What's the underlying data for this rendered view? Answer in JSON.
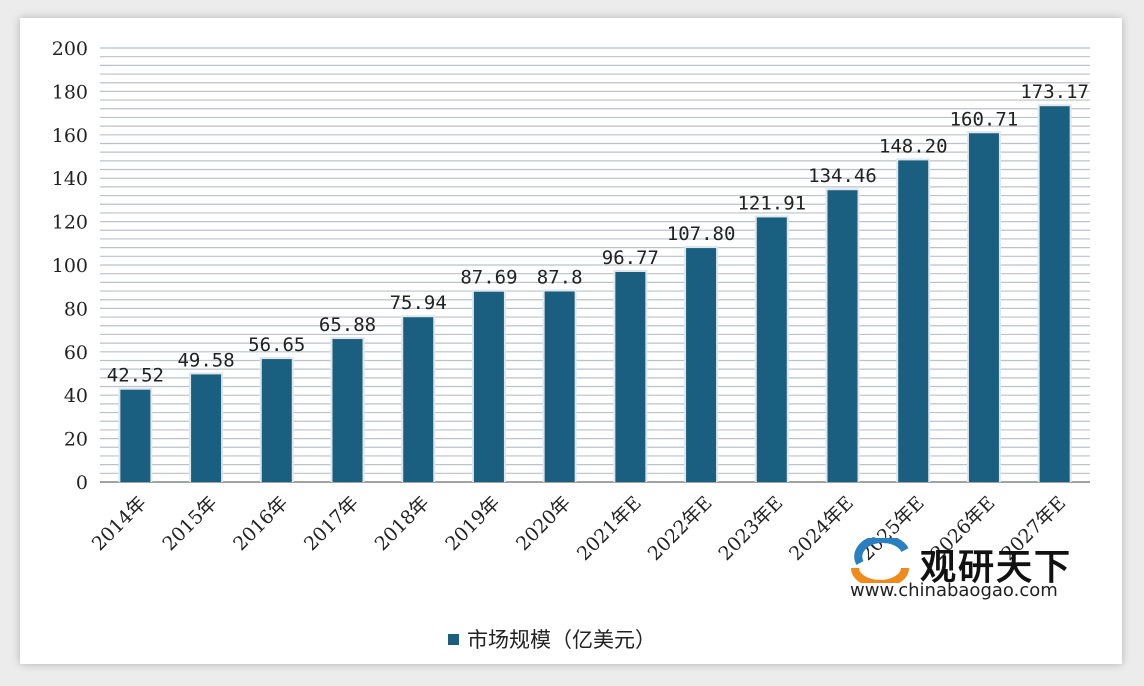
{
  "chart_data": {
    "type": "bar",
    "categories": [
      "2014年",
      "2015年",
      "2016年",
      "2017年",
      "2018年",
      "2019年",
      "2020年",
      "2021年E",
      "2022年E",
      "2023年E",
      "2024年E",
      "2025年E",
      "2026年E",
      "2027年E"
    ],
    "series": [
      {
        "name": "市场规模（亿美元）",
        "values": [
          42.52,
          49.58,
          56.65,
          65.88,
          75.94,
          87.69,
          87.8,
          96.77,
          107.8,
          121.91,
          134.46,
          148.2,
          160.71,
          173.17
        ]
      }
    ],
    "data_labels": [
      "42.52",
      "49.58",
      "56.65",
      "65.88",
      "75.94",
      "87.69",
      "87.8",
      "96.77",
      "107.80",
      "121.91",
      "134.46",
      "148.20",
      "160.71",
      "173.17"
    ],
    "yticks": [
      "0",
      "20",
      "40",
      "60",
      "80",
      "100",
      "120",
      "140",
      "160",
      "180",
      "200"
    ],
    "ylim": [
      0,
      200
    ],
    "grid": true,
    "legend_position": "bottom",
    "bar_color": "#1a5f80"
  },
  "watermark": {
    "name": "观研天下",
    "url": "www.chinabaogao.com"
  }
}
